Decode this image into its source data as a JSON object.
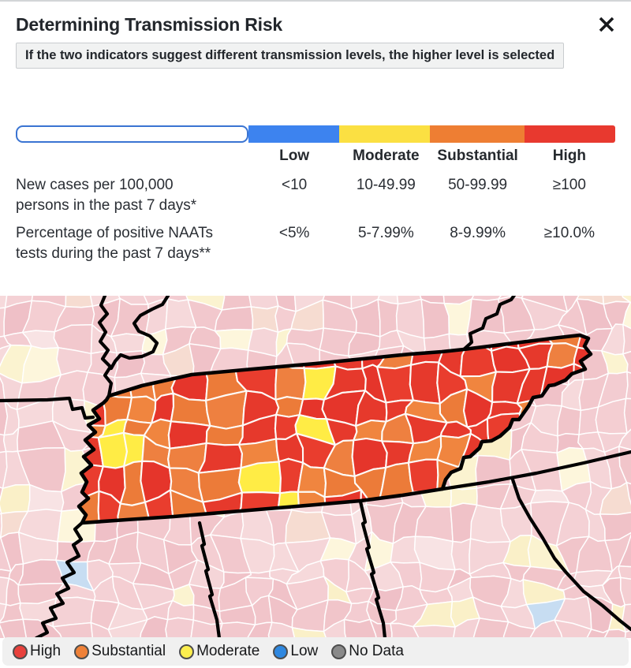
{
  "modal": {
    "title": "Determining Transmission Risk",
    "note": "If the two indicators suggest different transmission levels, the higher level is selected",
    "close_label": "close"
  },
  "risk_table": {
    "columns": [
      {
        "label": "Low",
        "color": "#3d83ef"
      },
      {
        "label": "Moderate",
        "color": "#fbe042"
      },
      {
        "label": "Substantial",
        "color": "#ee7e33"
      },
      {
        "label": "High",
        "color": "#e8392f"
      }
    ],
    "rows": [
      {
        "label_line1": "New cases per 100,000",
        "label_line2": "persons in the past 7 days*",
        "values": [
          "<10",
          "10-49.99",
          "50-99.99",
          "≥100"
        ]
      },
      {
        "label_line1": "Percentage of positive NAATs",
        "label_line2": "tests during the past 7 days**",
        "values": [
          "<5%",
          "5-7.99%",
          "8-9.99%",
          "≥10.0%"
        ]
      }
    ]
  },
  "map": {
    "county_colors": {
      "high": "#e6392c",
      "substantial": "#ee8040",
      "moderate": "#ffec45",
      "background_pink": "#f3cbd0",
      "background_cream": "#fbf3d0",
      "background_blue": "#c7ddf2"
    }
  },
  "legend": {
    "items": [
      {
        "label": "High",
        "color": "#e8413c"
      },
      {
        "label": "Substantial",
        "color": "#ef8138"
      },
      {
        "label": "Moderate",
        "color": "#fcee4e"
      },
      {
        "label": "Low",
        "color": "#2f88e0"
      },
      {
        "label": "No Data",
        "color": "#8a8a8a"
      }
    ]
  }
}
